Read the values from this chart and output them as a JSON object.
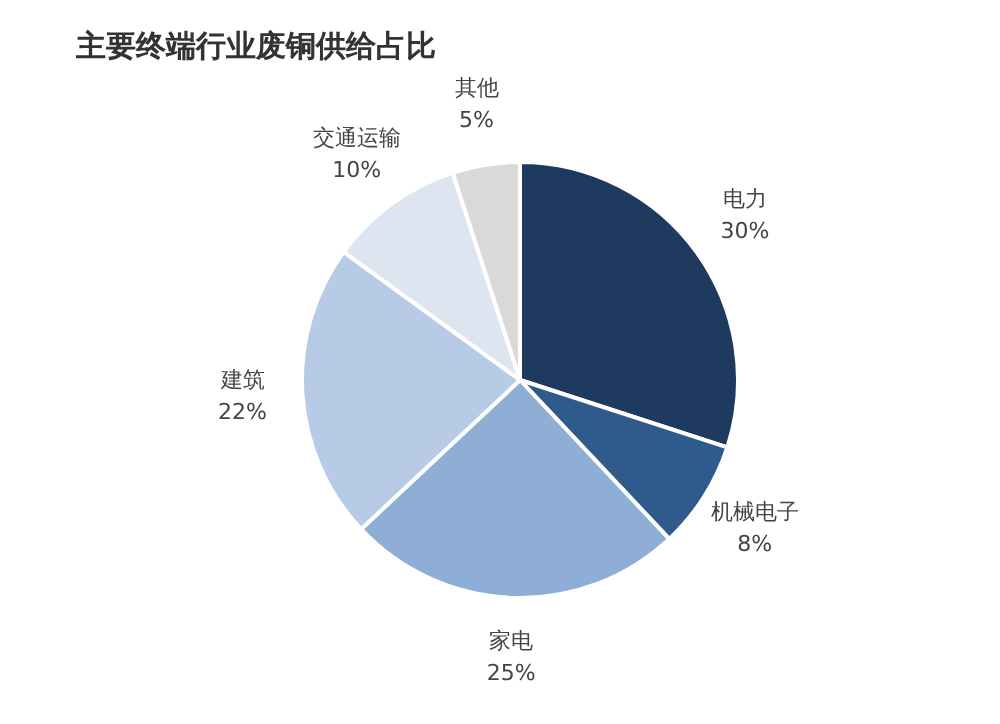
{
  "chart_data": {
    "type": "pie",
    "title": "主要终端行业废铜供给占比",
    "categories": [
      "电力",
      "机械电子",
      "家电",
      "建筑",
      "交通运输",
      "其他"
    ],
    "values": [
      30,
      8,
      25,
      22,
      10,
      5
    ],
    "value_labels": [
      "30%",
      "8%",
      "25%",
      "22%",
      "10%",
      "5%"
    ],
    "colors": [
      "#1f3a5f",
      "#2e5a8c",
      "#8eaed6",
      "#b7cbe6",
      "#dde6f0",
      "#d9d9d9"
    ],
    "legend": false
  }
}
